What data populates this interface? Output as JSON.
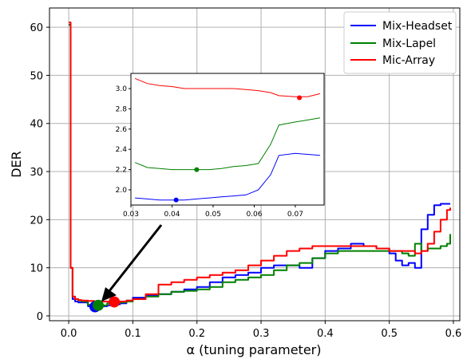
{
  "chart_data": {
    "type": "line",
    "xlabel": "α (tuning parameter)",
    "ylabel": "DER",
    "xlim": [
      -0.03,
      0.61
    ],
    "ylim": [
      -1,
      64
    ],
    "xticks": [
      0.0,
      0.1,
      0.2,
      0.3,
      0.4,
      0.5,
      0.6
    ],
    "xtick_labels": [
      "0.0",
      "0.1",
      "0.2",
      "0.3",
      "0.4",
      "0.5",
      "0.6"
    ],
    "yticks": [
      0,
      10,
      20,
      30,
      40,
      50,
      60
    ],
    "ytick_labels": [
      "0",
      "10",
      "20",
      "30",
      "40",
      "50",
      "60"
    ],
    "grid": true,
    "legend_position": "top-right",
    "series": [
      {
        "name": "Mix-Headset",
        "color": "#0000ff",
        "x": [
          0.0,
          0.003,
          0.006,
          0.01,
          0.015,
          0.02,
          0.03,
          0.04,
          0.05,
          0.06,
          0.07,
          0.08,
          0.09,
          0.1,
          0.12,
          0.14,
          0.16,
          0.18,
          0.2,
          0.22,
          0.24,
          0.26,
          0.28,
          0.3,
          0.32,
          0.34,
          0.36,
          0.38,
          0.4,
          0.42,
          0.44,
          0.46,
          0.48,
          0.5,
          0.51,
          0.52,
          0.53,
          0.54,
          0.55,
          0.56,
          0.57,
          0.58,
          0.595
        ],
        "y": [
          60.5,
          10,
          3.5,
          3.0,
          2.8,
          2.8,
          2.0,
          1.9,
          2.0,
          2.2,
          2.4,
          2.6,
          3.2,
          3.8,
          4.2,
          4.5,
          5.0,
          5.5,
          6.0,
          7.0,
          8.0,
          8.5,
          9.0,
          10.0,
          10.5,
          10.5,
          10.0,
          12.0,
          13.5,
          14.0,
          15.0,
          14.5,
          14.0,
          13.0,
          11.5,
          10.5,
          11.0,
          10.0,
          18.0,
          21.0,
          23.0,
          23.3,
          23.3
        ]
      },
      {
        "name": "Mix-Lapel",
        "color": "#008000",
        "x": [
          0.0,
          0.003,
          0.006,
          0.01,
          0.015,
          0.02,
          0.03,
          0.04,
          0.046,
          0.05,
          0.06,
          0.07,
          0.08,
          0.09,
          0.1,
          0.12,
          0.14,
          0.16,
          0.18,
          0.2,
          0.22,
          0.24,
          0.26,
          0.28,
          0.3,
          0.32,
          0.34,
          0.36,
          0.38,
          0.4,
          0.42,
          0.44,
          0.46,
          0.48,
          0.5,
          0.52,
          0.53,
          0.54,
          0.55,
          0.56,
          0.58,
          0.59,
          0.595
        ],
        "y": [
          60.5,
          10,
          4.0,
          3.5,
          3.2,
          3.0,
          2.3,
          2.2,
          2.2,
          2.2,
          2.6,
          2.7,
          2.8,
          3.0,
          3.5,
          4.0,
          4.5,
          5.0,
          5.2,
          5.5,
          6.0,
          7.0,
          7.5,
          8.0,
          8.5,
          9.5,
          10.5,
          11.0,
          12.0,
          13.0,
          13.5,
          13.5,
          13.5,
          13.5,
          13.5,
          13.0,
          12.5,
          15.0,
          13.5,
          14.0,
          14.5,
          15.0,
          17.0
        ]
      },
      {
        "name": "Mic-Array",
        "color": "#ff0000",
        "x": [
          0.0,
          0.003,
          0.006,
          0.01,
          0.015,
          0.02,
          0.03,
          0.04,
          0.05,
          0.06,
          0.07,
          0.08,
          0.09,
          0.1,
          0.12,
          0.14,
          0.16,
          0.18,
          0.2,
          0.22,
          0.24,
          0.26,
          0.28,
          0.3,
          0.32,
          0.34,
          0.36,
          0.38,
          0.4,
          0.42,
          0.44,
          0.46,
          0.48,
          0.5,
          0.52,
          0.54,
          0.55,
          0.56,
          0.57,
          0.58,
          0.59,
          0.595
        ],
        "y": [
          61.0,
          10,
          4.0,
          3.5,
          3.3,
          3.2,
          3.1,
          3.0,
          3.0,
          2.95,
          2.9,
          3.0,
          3.2,
          3.5,
          4.5,
          6.5,
          7.0,
          7.5,
          8.0,
          8.5,
          9.0,
          9.5,
          10.5,
          11.5,
          12.5,
          13.5,
          14.0,
          14.5,
          14.5,
          14.5,
          14.5,
          14.5,
          14.0,
          13.5,
          13.5,
          13.0,
          13.5,
          15.0,
          17.5,
          20.0,
          22.0,
          22.5
        ]
      }
    ],
    "markers": [
      {
        "x": 0.041,
        "y": 1.9,
        "color": "#0000ff"
      },
      {
        "x": 0.046,
        "y": 2.2,
        "color": "#008000"
      },
      {
        "x": 0.071,
        "y": 2.9,
        "color": "#ff0000"
      }
    ],
    "inset": {
      "xlim": [
        0.03,
        0.077
      ],
      "ylim": [
        1.85,
        3.15
      ],
      "xticks": [
        0.03,
        0.04,
        0.05,
        0.06,
        0.07
      ],
      "xtick_labels": [
        "0.03",
        "0.04",
        "0.05",
        "0.06",
        "0.07"
      ],
      "yticks": [
        2.0,
        2.2,
        2.4,
        2.6,
        2.8,
        3.0
      ],
      "ytick_labels": [
        "2.0",
        "2.2",
        "2.4",
        "2.6",
        "2.8",
        "3.0"
      ],
      "series": [
        {
          "name": "Mix-Headset",
          "color": "#0000ff",
          "x": [
            0.031,
            0.034,
            0.037,
            0.04,
            0.043,
            0.046,
            0.049,
            0.052,
            0.055,
            0.058,
            0.061,
            0.064,
            0.066,
            0.07,
            0.073,
            0.076
          ],
          "y": [
            1.92,
            1.91,
            1.9,
            1.9,
            1.9,
            1.91,
            1.92,
            1.93,
            1.94,
            1.95,
            2.0,
            2.15,
            2.34,
            2.36,
            2.35,
            2.34
          ]
        },
        {
          "name": "Mix-Lapel",
          "color": "#008000",
          "x": [
            0.031,
            0.034,
            0.037,
            0.04,
            0.043,
            0.046,
            0.049,
            0.052,
            0.055,
            0.058,
            0.061,
            0.064,
            0.066,
            0.07,
            0.073,
            0.076
          ],
          "y": [
            2.27,
            2.22,
            2.21,
            2.2,
            2.2,
            2.2,
            2.2,
            2.21,
            2.23,
            2.24,
            2.26,
            2.45,
            2.64,
            2.67,
            2.69,
            2.71
          ]
        },
        {
          "name": "Mic-Array",
          "color": "#ff0000",
          "x": [
            0.031,
            0.034,
            0.037,
            0.04,
            0.043,
            0.046,
            0.049,
            0.052,
            0.055,
            0.058,
            0.061,
            0.064,
            0.066,
            0.07,
            0.073,
            0.076
          ],
          "y": [
            3.1,
            3.05,
            3.03,
            3.02,
            3.0,
            3.0,
            3.0,
            3.0,
            3.0,
            2.99,
            2.98,
            2.96,
            2.93,
            2.92,
            2.92,
            2.95
          ]
        }
      ],
      "markers": [
        {
          "x": 0.041,
          "y": 1.9,
          "color": "#0000ff"
        },
        {
          "x": 0.046,
          "y": 2.2,
          "color": "#008000"
        },
        {
          "x": 0.071,
          "y": 2.91,
          "color": "#ff0000"
        }
      ]
    }
  }
}
